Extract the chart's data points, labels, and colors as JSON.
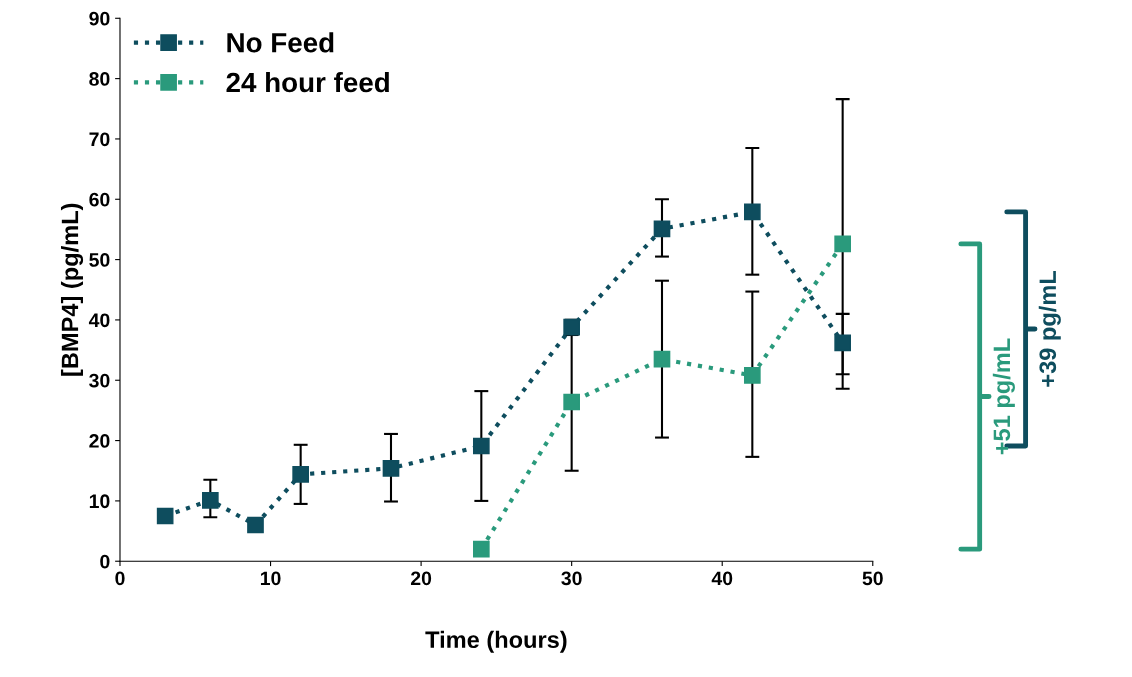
{
  "chart_data": {
    "type": "line",
    "xlabel": "Time (hours)",
    "ylabel": "[BMP4] (pg/mL)",
    "xlim": [
      0,
      50
    ],
    "xticks": [
      0,
      10,
      20,
      30,
      40,
      50
    ],
    "ylim": [
      0,
      90
    ],
    "yticks": [
      0,
      10,
      20,
      30,
      40,
      50,
      60,
      70,
      80,
      90
    ],
    "grid": false,
    "legend": "top left",
    "marker": "square",
    "line_style": "dotted",
    "series": [
      {
        "name": "No Feed",
        "color": "#0e4d5e",
        "x": [
          3,
          6,
          9,
          12,
          18,
          24,
          30,
          36,
          42,
          48
        ],
        "values": [
          7.5,
          10.1,
          6.0,
          14.4,
          15.4,
          19.1,
          38.8,
          55.1,
          57.9,
          36.2
        ],
        "errors": [
          null,
          [
            7.3,
            13.5
          ],
          null,
          [
            9.5,
            19.3
          ],
          [
            9.9,
            21.1
          ],
          [
            10.0,
            28.2
          ],
          [
            37.5,
            40.0
          ],
          [
            50.5,
            60.0
          ],
          [
            47.5,
            68.5
          ],
          [
            31.0,
            41.0
          ]
        ]
      },
      {
        "name": "24 hour feed",
        "color": "#2a9a7c",
        "x": [
          24,
          30,
          36,
          42,
          48
        ],
        "values": [
          2.0,
          26.4,
          33.5,
          30.8,
          52.6
        ],
        "errors": [
          null,
          [
            15.0,
            40.0
          ],
          [
            20.5,
            46.5
          ],
          [
            17.3,
            44.7
          ],
          [
            28.6,
            76.6
          ]
        ]
      }
    ],
    "annotations": [
      "+39 pg/mL",
      "+51 pg/mL"
    ]
  }
}
